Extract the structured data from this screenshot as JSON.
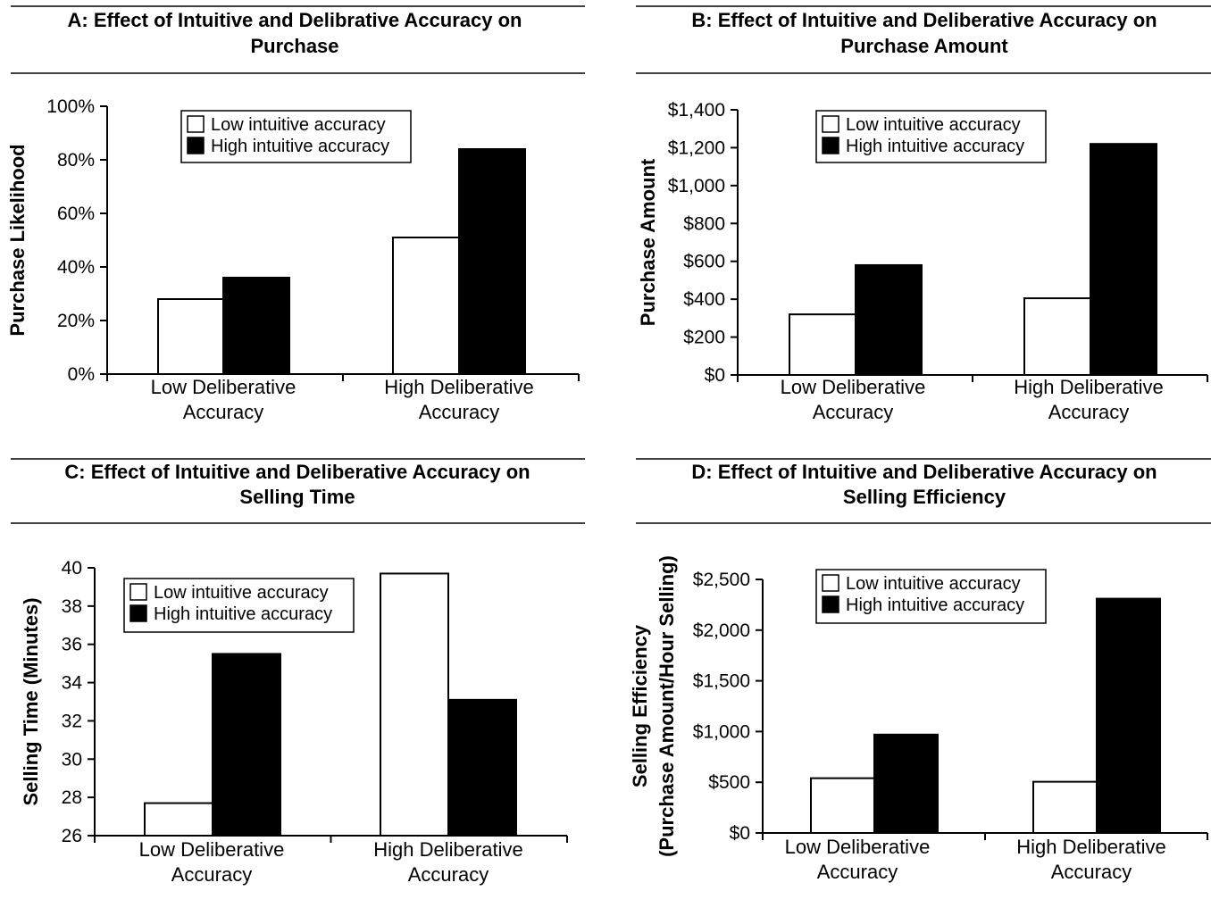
{
  "chart_data": [
    {
      "id": "A",
      "type": "bar",
      "title": [
        "A: Effect of Intuitive and Delibrative Accuracy on",
        "Purchase"
      ],
      "ylabel": [
        "Purchase Likelihood"
      ],
      "categories": [
        [
          "Low Deliberative",
          "Accuracy"
        ],
        [
          "High Deliberative",
          "Accuracy"
        ]
      ],
      "series": [
        {
          "name": "Low intuitive accuracy",
          "values": [
            28,
            51
          ],
          "color": "#ffffff"
        },
        {
          "name": "High intuitive accuracy",
          "values": [
            36,
            84
          ],
          "color": "#000000"
        }
      ],
      "ylim": [
        0,
        100
      ],
      "yticks": [
        0,
        20,
        40,
        60,
        80,
        100
      ],
      "ytick_labels": [
        "0%",
        "20%",
        "40%",
        "60%",
        "80%",
        "100%"
      ],
      "legend": "top-center",
      "grid": false
    },
    {
      "id": "B",
      "type": "bar",
      "title": [
        "B: Effect of Intuitive and Deliberative Accuracy on",
        "Purchase Amount"
      ],
      "ylabel": [
        "Purchase Amount"
      ],
      "categories": [
        [
          "Low Deliberative",
          "Accuracy"
        ],
        [
          "High Deliberative",
          "Accuracy"
        ]
      ],
      "series": [
        {
          "name": "Low intuitive accuracy",
          "values": [
            320,
            405
          ],
          "color": "#ffffff"
        },
        {
          "name": "High intuitive accuracy",
          "values": [
            580,
            1220
          ],
          "color": "#000000"
        }
      ],
      "ylim": [
        0,
        1400
      ],
      "yticks": [
        0,
        200,
        400,
        600,
        800,
        1000,
        1200,
        1400
      ],
      "ytick_labels": [
        "$0",
        "$200",
        "$400",
        "$600",
        "$800",
        "$1,000",
        "$1,200",
        "$1,400"
      ],
      "legend": "top-center",
      "grid": false
    },
    {
      "id": "C",
      "type": "bar",
      "title": [
        "C: Effect of Intuitive and Deliberative Accuracy on",
        "Selling Time"
      ],
      "ylabel": [
        "Selling Time (Minutes)"
      ],
      "categories": [
        [
          "Low Deliberative",
          "Accuracy"
        ],
        [
          "High Deliberative",
          "Accuracy"
        ]
      ],
      "series": [
        {
          "name": "Low intuitive accuracy",
          "values": [
            27.7,
            39.7
          ],
          "color": "#ffffff"
        },
        {
          "name": "High intuitive accuracy",
          "values": [
            35.5,
            33.1
          ],
          "color": "#000000"
        }
      ],
      "ylim": [
        26,
        40
      ],
      "yticks": [
        26,
        28,
        30,
        32,
        34,
        36,
        38,
        40
      ],
      "ytick_labels": [
        "26",
        "28",
        "30",
        "32",
        "34",
        "36",
        "38",
        "40"
      ],
      "legend": "top-left",
      "grid": false
    },
    {
      "id": "D",
      "type": "bar",
      "title": [
        "D: Effect of Intuitive and Deliberative Accuracy on",
        "Selling Efficiency"
      ],
      "ylabel": [
        "Selling Efficiency",
        "(Purchase Amount/Hour Selling)"
      ],
      "categories": [
        [
          "Low Deliberative",
          "Accuracy"
        ],
        [
          "High Deliberative",
          "Accuracy"
        ]
      ],
      "series": [
        {
          "name": "Low intuitive accuracy",
          "values": [
            540,
            505
          ],
          "color": "#ffffff"
        },
        {
          "name": "High intuitive accuracy",
          "values": [
            970,
            2310
          ],
          "color": "#000000"
        }
      ],
      "ylim": [
        0,
        2500
      ],
      "yticks": [
        0,
        500,
        1000,
        1500,
        2000,
        2500
      ],
      "ytick_labels": [
        "$0",
        "$500",
        "$1,000",
        "$1,500",
        "$2,000",
        "$2,500"
      ],
      "legend": "top-center",
      "grid": false
    }
  ]
}
